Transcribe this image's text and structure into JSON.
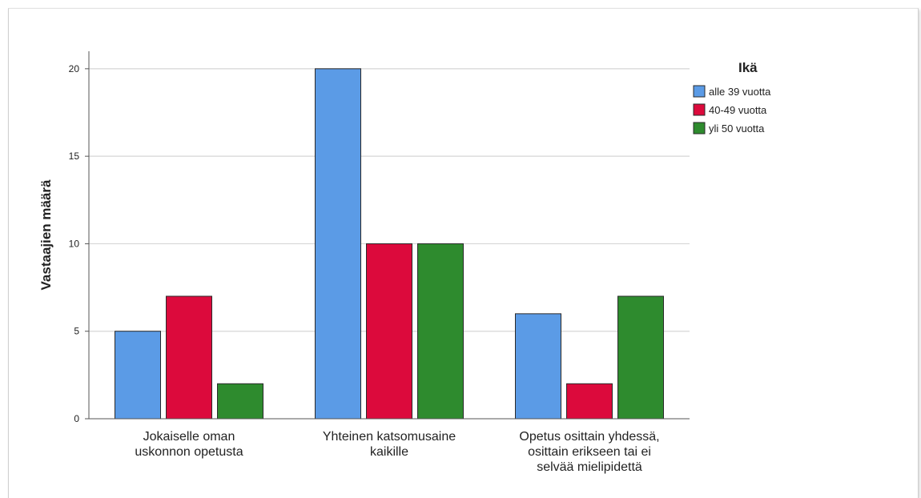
{
  "chart_data": {
    "type": "bar",
    "ylabel": "Vastaajien määrä",
    "xlabel": "",
    "ylim": [
      0,
      21
    ],
    "yticks": [
      0,
      5,
      10,
      15,
      20
    ],
    "grid": true,
    "legend_position": "top-right",
    "categories": [
      [
        "Jokaiselle oman",
        "uskonnon opetusta"
      ],
      [
        "Yhteinen katsomusaine",
        "kaikille"
      ],
      [
        "Opetus osittain yhdessä,",
        "osittain erikseen tai ei",
        "selvää mielipidettä"
      ]
    ],
    "legend_title": "Ikä",
    "series": [
      {
        "name": "alle 39 vuotta",
        "color": "#5b9be6",
        "values": [
          5,
          20,
          6
        ]
      },
      {
        "name": "40-49 vuotta",
        "color": "#dc0a3c",
        "values": [
          7,
          10,
          2
        ]
      },
      {
        "name": "yli 50 vuotta",
        "color": "#2e8b2e",
        "values": [
          2,
          10,
          7
        ]
      }
    ]
  }
}
